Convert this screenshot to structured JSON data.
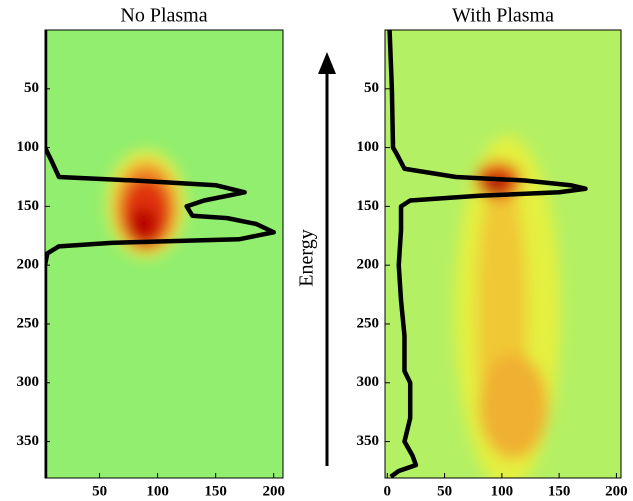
{
  "annotation": "Energy",
  "chart_data": [
    {
      "type": "line",
      "title": "No Plasma",
      "background": "#92ee6e",
      "heatmap": [
        {
          "x": 90,
          "y": 148,
          "rx": 34,
          "ry": 46,
          "color": "#e8ee48"
        },
        {
          "x": 90,
          "y": 150,
          "rx": 27,
          "ry": 38,
          "color": "#f09028"
        },
        {
          "x": 90,
          "y": 156,
          "rx": 21,
          "ry": 30,
          "color": "#e03010"
        },
        {
          "x": 88,
          "y": 165,
          "rx": 12,
          "ry": 14,
          "color": "#b80000"
        }
      ],
      "xlim": [
        3,
        208
      ],
      "xticks": [
        50,
        100,
        150,
        200
      ],
      "ylim": [
        381,
        0
      ],
      "yticks": [
        50,
        100,
        150,
        200,
        250,
        300,
        350
      ],
      "series": [
        {
          "color": "#000000",
          "x": [
            3,
            3,
            8,
            15,
            80,
            150,
            175,
            140,
            125,
            130,
            160,
            185,
            200,
            170,
            60,
            15,
            5,
            3,
            3
          ],
          "values": [
            0,
            100,
            110,
            125,
            128,
            132,
            138,
            145,
            150,
            158,
            160,
            165,
            172,
            178,
            181,
            184,
            190,
            200,
            381
          ]
        }
      ]
    },
    {
      "type": "line",
      "title": "With Plasma",
      "background": "#b4f064",
      "heatmap": [
        {
          "x": 105,
          "y": 240,
          "rx": 46,
          "ry": 150,
          "color": "#e4f040"
        },
        {
          "x": 100,
          "y": 240,
          "rx": 22,
          "ry": 120,
          "color": "#f0c834"
        },
        {
          "x": 110,
          "y": 320,
          "rx": 30,
          "ry": 45,
          "color": "#f0b030"
        },
        {
          "x": 97,
          "y": 128,
          "rx": 20,
          "ry": 16,
          "color": "#e85010"
        },
        {
          "x": 95,
          "y": 131,
          "rx": 12,
          "ry": 7,
          "color": "#a00000"
        }
      ],
      "xlim": [
        -2,
        204
      ],
      "xticks": [
        0,
        50,
        100,
        150,
        200
      ],
      "ylim": [
        381,
        0
      ],
      "yticks": [
        50,
        100,
        150,
        200,
        250,
        300,
        350
      ],
      "series": [
        {
          "color": "#000000",
          "x": [
            2,
            4,
            5,
            8,
            15,
            60,
            120,
            160,
            173,
            150,
            80,
            20,
            12,
            12,
            10,
            12,
            15,
            15,
            20,
            20,
            15,
            22,
            25,
            10,
            3
          ],
          "values": [
            0,
            50,
            100,
            105,
            118,
            125,
            128,
            132,
            135,
            138,
            141,
            145,
            150,
            170,
            200,
            230,
            260,
            290,
            300,
            330,
            350,
            362,
            370,
            375,
            380
          ]
        }
      ]
    }
  ]
}
